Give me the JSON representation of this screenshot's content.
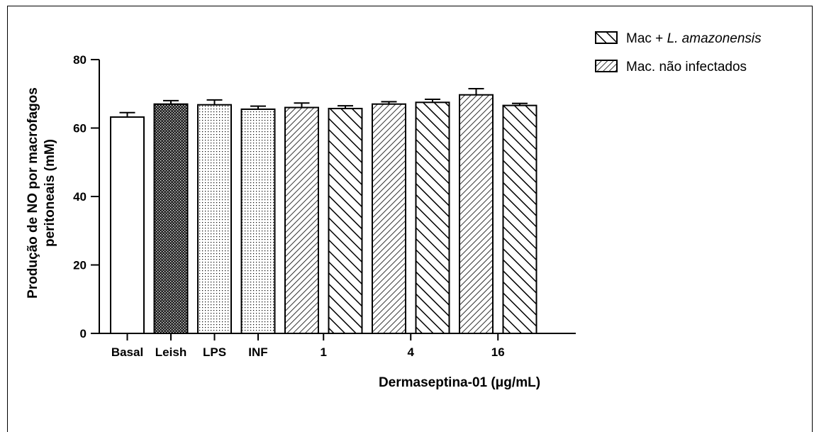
{
  "chart_data": {
    "type": "bar",
    "title": "",
    "xlabel": "Dermaseptina-01 (μg/mL)",
    "ylabel_lines": [
      "Produção de NO por macrofagos",
      "peritoneais (mM)"
    ],
    "ylim": [
      0,
      80
    ],
    "yticks": [
      0,
      20,
      40,
      60,
      80
    ],
    "grid": false,
    "legend_position": "top-right",
    "legend": [
      {
        "text_plain": "Mac + ",
        "text_italic": "L. amazonensis",
        "pattern": "hatch-back"
      },
      {
        "text_plain": "Mac. não infectados",
        "text_italic": "",
        "pattern": "hatch-fwd"
      }
    ],
    "group_labels": [
      {
        "label": "Basal",
        "bar": 0
      },
      {
        "label": "Leish",
        "bar": 1
      },
      {
        "label": "LPS",
        "bar": 2
      },
      {
        "label": "INF",
        "bar": 3
      },
      {
        "label": "1",
        "bar": 4.5
      },
      {
        "label": "4",
        "bar": 6.5
      },
      {
        "label": "16",
        "bar": 8.5
      }
    ],
    "bars": [
      {
        "value": 63.2,
        "error": 1.3,
        "pattern": "white"
      },
      {
        "value": 67.0,
        "error": 1.0,
        "pattern": "dense"
      },
      {
        "value": 66.8,
        "error": 1.4,
        "pattern": "dots"
      },
      {
        "value": 65.5,
        "error": 0.9,
        "pattern": "dots"
      },
      {
        "value": 66.0,
        "error": 1.3,
        "pattern": "hatch-fwd"
      },
      {
        "value": 65.7,
        "error": 0.8,
        "pattern": "hatch-back"
      },
      {
        "value": 67.0,
        "error": 0.7,
        "pattern": "hatch-fwd"
      },
      {
        "value": 67.5,
        "error": 0.9,
        "pattern": "hatch-back"
      },
      {
        "value": 69.7,
        "error": 1.8,
        "pattern": "hatch-fwd"
      },
      {
        "value": 66.6,
        "error": 0.6,
        "pattern": "hatch-back"
      }
    ]
  }
}
